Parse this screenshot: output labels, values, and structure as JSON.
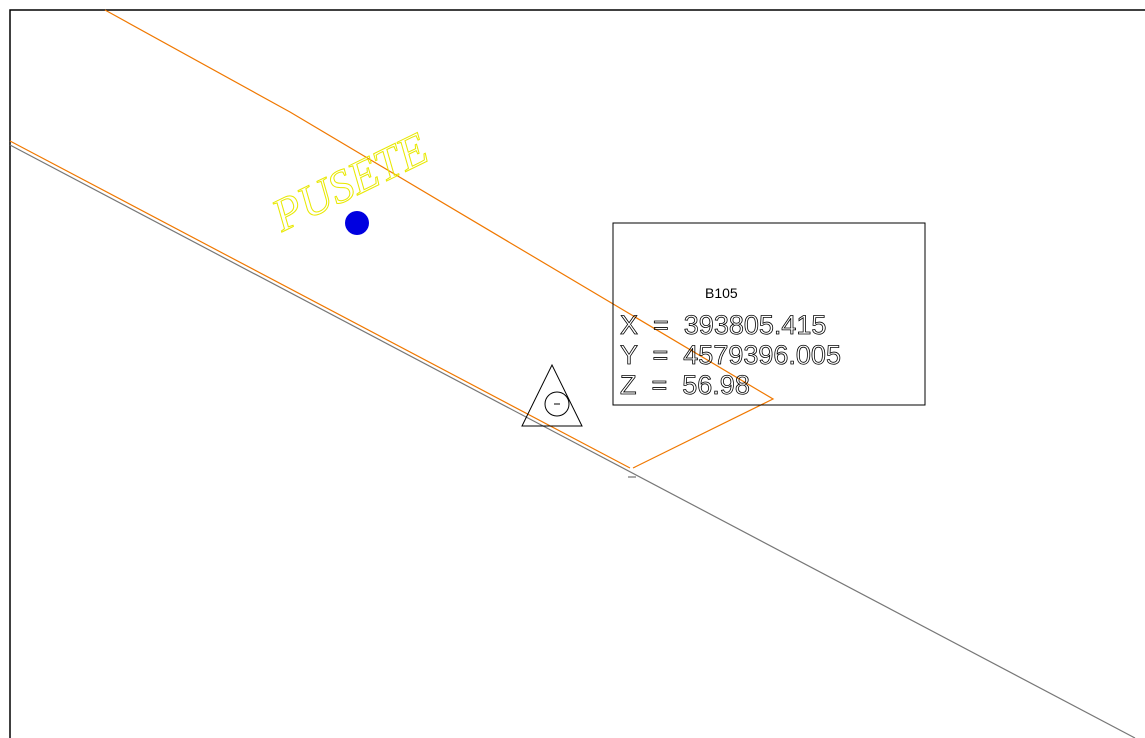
{
  "label": "PUSETE",
  "point": {
    "name": "B105",
    "lines": [
      "X  =  393805.415",
      "Y  =  4579396.005",
      "Z  =  56.98"
    ]
  }
}
